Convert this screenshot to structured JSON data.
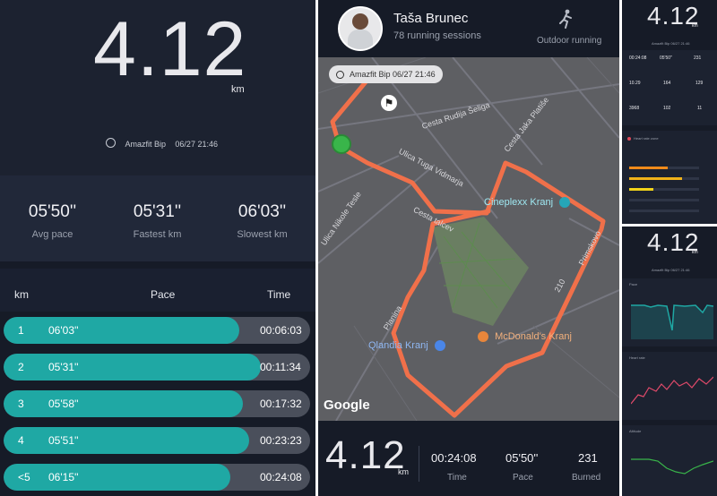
{
  "summary": {
    "distance": "4.12",
    "unit": "km",
    "device": "Amazfit Bip",
    "datetime": "06/27 21:46"
  },
  "pace_stats": {
    "avg_value": "05'50''",
    "avg_label": "Avg pace",
    "fastest_value": "05'31''",
    "fastest_label": "Fastest km",
    "slowest_value": "06'03''",
    "slowest_label": "Slowest km"
  },
  "splits": {
    "col_km": "km",
    "col_pace": "Pace",
    "col_time": "Time",
    "rows": [
      {
        "km": "1",
        "pace": "06'03''",
        "time": "00:06:03",
        "fill": 0.77
      },
      {
        "km": "2",
        "pace": "05'31''",
        "time": "00:11:34",
        "fill": 0.84
      },
      {
        "km": "3",
        "pace": "05'58''",
        "time": "00:17:32",
        "fill": 0.78
      },
      {
        "km": "4",
        "pace": "05'51''",
        "time": "00:23:23",
        "fill": 0.8
      },
      {
        "km": "<5",
        "pace": "06'15''",
        "time": "00:24:08",
        "fill": 0.74
      }
    ]
  },
  "profile": {
    "name": "Taša Brunec",
    "sessions": "78 running sessions",
    "activity": "Outdoor running"
  },
  "map": {
    "badge": "Amazfit Bip  06/27 21:46",
    "streets": [
      "Cesta Rudija Šeliga",
      "Cesta Jaka Platiše",
      "Ulica Tuga Vidmarja",
      "Cesta talcev",
      "Ulica Nikole Tesle",
      "Planina",
      "Primskovo",
      "210"
    ],
    "pois": [
      "Cineplexx Kranj",
      "McDonald's Kranj",
      "Qlandia Kranj"
    ],
    "logo": "Google"
  },
  "bottom_stats": {
    "distance": "4.12",
    "unit": "km",
    "time": "00:24:08",
    "time_label": "Time",
    "pace": "05'50''",
    "pace_label": "Pace",
    "burned": "231",
    "burned_label": "Burned"
  },
  "mini1": {
    "distance": "4.12",
    "unit": "km",
    "device": "Amazfit Bip  06/27 21:46",
    "grid": [
      [
        "00:24:08",
        "05'50''",
        "231"
      ],
      [
        "10.29",
        "164",
        "129"
      ],
      [
        "3968",
        "102",
        "11"
      ]
    ],
    "hr_title": "Heart rate zone",
    "zones": [
      0.55,
      0.75,
      0.35,
      0.0,
      0.0
    ]
  },
  "mini2": {
    "distance": "4.12",
    "unit": "km",
    "device": "Amazfit Bip  06/27 21:46",
    "pace_title": "Pace",
    "hr_title": "Heart rate",
    "alt_title": "Altitude"
  },
  "colors": {
    "teal": "#1fa8a4",
    "route": "#f0704a",
    "panel": "#1c2230",
    "orange": "#f08a1a"
  }
}
